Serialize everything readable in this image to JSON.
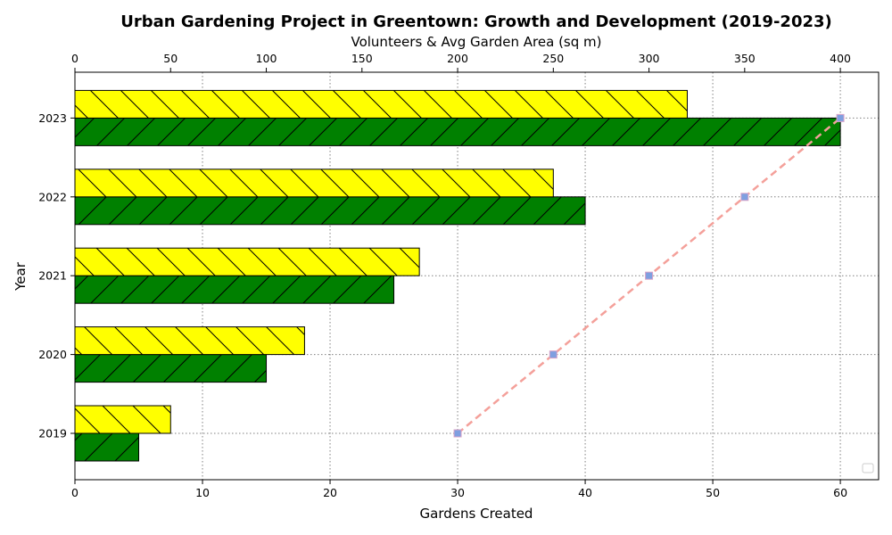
{
  "chart_data": {
    "type": "bar",
    "orientation": "horizontal",
    "title": "Urban Gardening Project in Greentown: Growth and Development (2019-2023)",
    "ylabel": "Year",
    "xlabel_bottom": "Gardens Created",
    "xlabel_top": "Volunteers & Avg Garden Area (sq m)",
    "categories": [
      "2019",
      "2020",
      "2021",
      "2022",
      "2023"
    ],
    "xlim_bottom": [
      0,
      63
    ],
    "xticks_bottom": [
      0,
      10,
      20,
      30,
      40,
      50,
      60
    ],
    "xlim_top": [
      0,
      420
    ],
    "xticks_top": [
      0,
      50,
      100,
      150,
      200,
      250,
      300,
      350,
      400
    ],
    "grid": true,
    "series": [
      {
        "axis": "bottom",
        "color": "#008000",
        "hatch": "/",
        "values": [
          5,
          15,
          25,
          40,
          60
        ]
      },
      {
        "axis": "top",
        "color": "#ffff00",
        "hatch": "\\",
        "values": [
          50,
          120,
          180,
          250,
          320
        ]
      },
      {
        "axis": "top",
        "type": "line",
        "color": "#f4a09a",
        "marker_color": "#7f9fe0",
        "linestyle": "dashed",
        "values": [
          200,
          250,
          300,
          350,
          400
        ]
      }
    ],
    "legend": {
      "placement": "bottom-right",
      "entries": []
    }
  }
}
